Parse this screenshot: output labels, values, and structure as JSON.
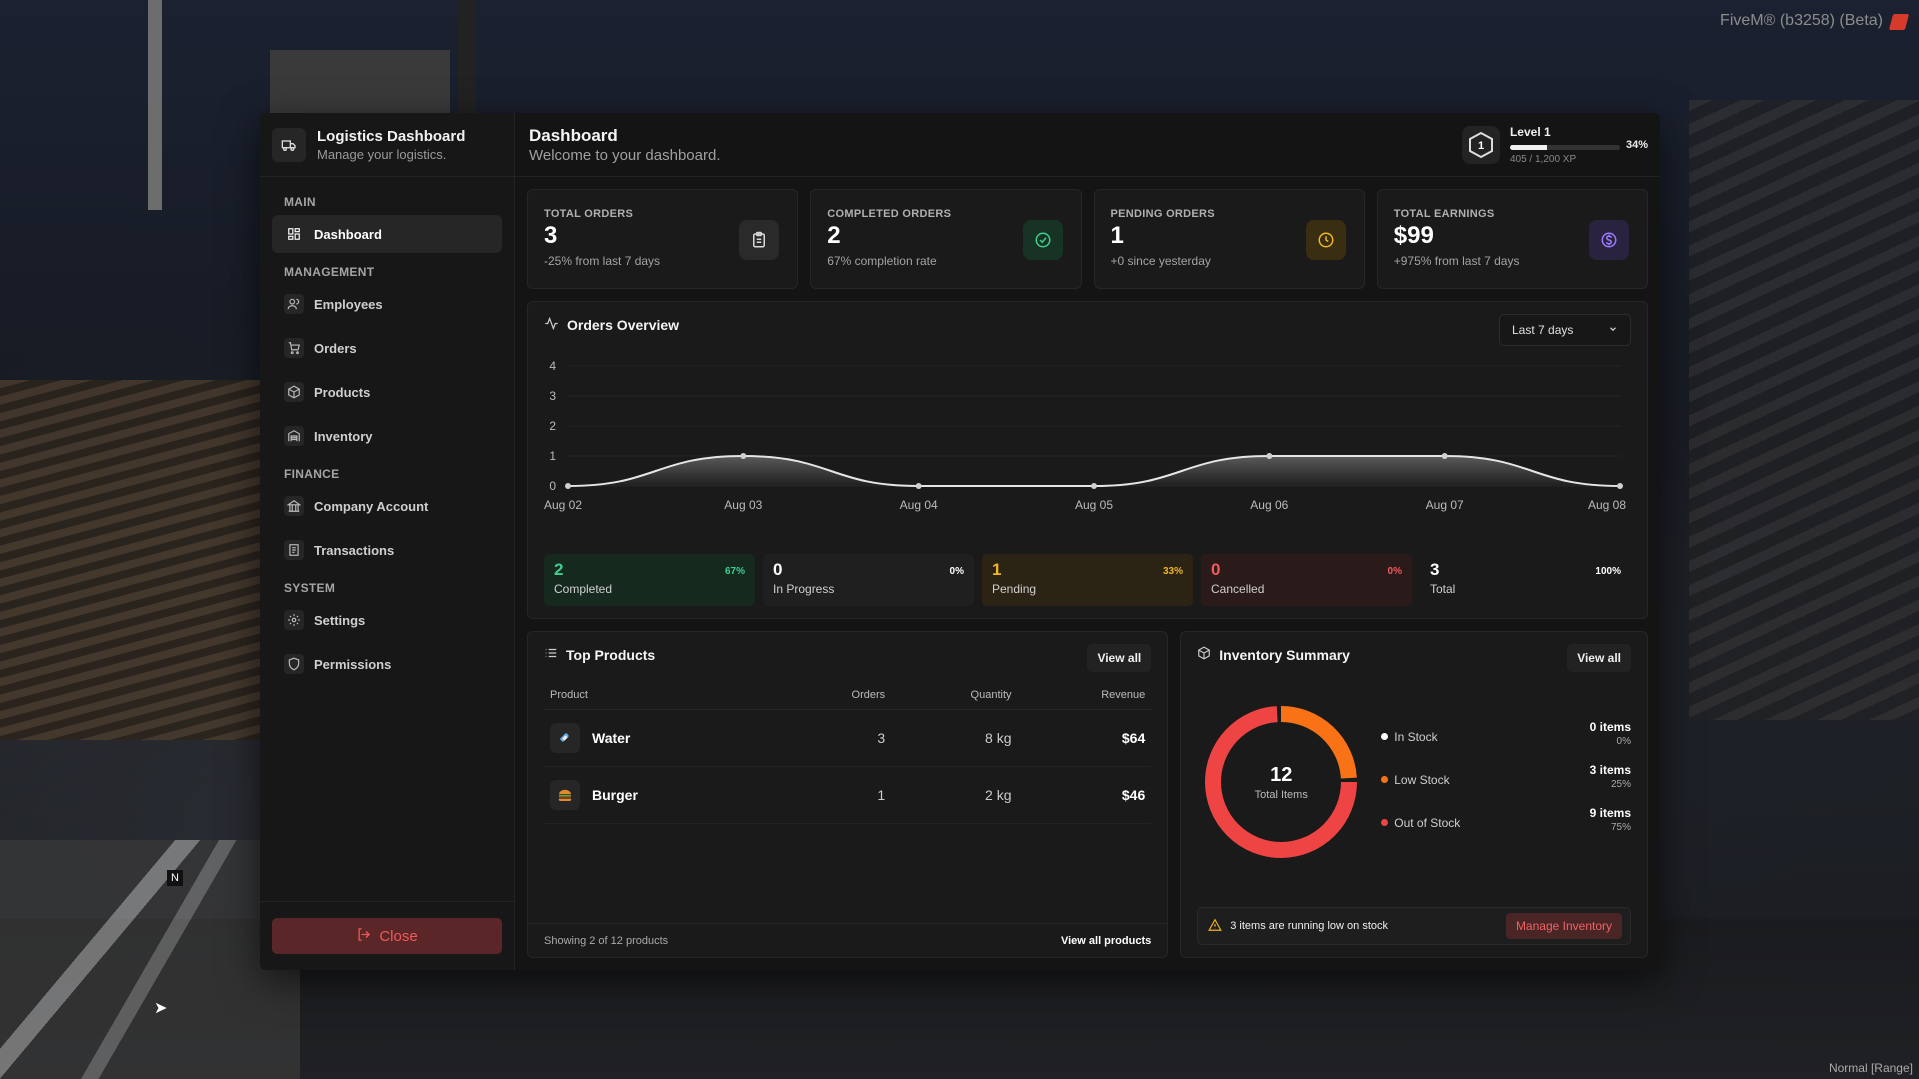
{
  "overlay": {
    "fivem_label": "FiveM® (b3258) (Beta)",
    "mode_label": "Normal [Range]",
    "minimap_north": "N"
  },
  "sidebar": {
    "title": "Logistics Dashboard",
    "subtitle": "Manage your logistics.",
    "sections": [
      {
        "label": "MAIN",
        "items": [
          {
            "label": "Dashboard",
            "icon": "dashboard-icon",
            "active": true
          }
        ]
      },
      {
        "label": "MANAGEMENT",
        "items": [
          {
            "label": "Employees",
            "icon": "users-icon"
          },
          {
            "label": "Orders",
            "icon": "cart-icon"
          },
          {
            "label": "Products",
            "icon": "box-icon"
          },
          {
            "label": "Inventory",
            "icon": "warehouse-icon"
          }
        ]
      },
      {
        "label": "FINANCE",
        "items": [
          {
            "label": "Company Account",
            "icon": "bank-icon"
          },
          {
            "label": "Transactions",
            "icon": "receipt-icon"
          }
        ]
      },
      {
        "label": "SYSTEM",
        "items": [
          {
            "label": "Settings",
            "icon": "gear-icon"
          },
          {
            "label": "Permissions",
            "icon": "shield-icon"
          }
        ]
      }
    ],
    "close_label": "Close"
  },
  "header": {
    "title": "Dashboard",
    "subtitle": "Welcome to your dashboard.",
    "level_number": "1",
    "level_label": "Level 1",
    "xp_text": "405 / 1,200 XP",
    "xp_percent_label": "34%",
    "xp_fraction": 0.34
  },
  "stats": [
    {
      "label": "TOTAL ORDERS",
      "value": "3",
      "note": "-25% from last 7 days",
      "icon": "clipboard-icon",
      "color": "#d9d9d9",
      "bg": "#2a2a2a"
    },
    {
      "label": "COMPLETED ORDERS",
      "value": "2",
      "note": "67% completion rate",
      "icon": "check-circle-icon",
      "color": "#3ecf8e",
      "bg": "#173326"
    },
    {
      "label": "PENDING ORDERS",
      "value": "1",
      "note": "+0 since yesterday",
      "icon": "clock-icon",
      "color": "#f0b429",
      "bg": "#3a2e12"
    },
    {
      "label": "TOTAL EARNINGS",
      "value": "$99",
      "note": "+975% from last 7 days",
      "icon": "dollar-icon",
      "color": "#9b7bff",
      "bg": "#2a2340"
    }
  ],
  "overview": {
    "title": "Orders Overview",
    "range": "Last 7 days",
    "status": [
      {
        "value": "2",
        "label": "Completed",
        "pct": "67%",
        "color": "#3ecf8e",
        "bg": "#15291f"
      },
      {
        "value": "0",
        "label": "In Progress",
        "pct": "0%",
        "color": "#ffffff",
        "bg": "#1f1f1f"
      },
      {
        "value": "1",
        "label": "Pending",
        "pct": "33%",
        "color": "#f0b429",
        "bg": "#2b2414"
      },
      {
        "value": "0",
        "label": "Cancelled",
        "pct": "0%",
        "color": "#f05a5a",
        "bg": "#2a1a1a"
      },
      {
        "value": "3",
        "label": "Total",
        "pct": "100%",
        "color": "#ffffff",
        "bg": "#1a1a1a"
      }
    ]
  },
  "chart_data": {
    "type": "area",
    "x": [
      "Aug 02",
      "Aug 03",
      "Aug 04",
      "Aug 05",
      "Aug 06",
      "Aug 07",
      "Aug 08"
    ],
    "series": [
      {
        "values": [
          0,
          1,
          0,
          0,
          1,
          1,
          0
        ]
      }
    ],
    "y_ticks": [
      "0",
      "1",
      "2",
      "3",
      "4"
    ],
    "ylim": [
      0,
      4
    ],
    "grid": true
  },
  "products": {
    "title": "Top Products",
    "view_all": "View all",
    "columns": [
      "Product",
      "Orders",
      "Quantity",
      "Revenue"
    ],
    "rows": [
      {
        "name": "Water",
        "orders": "3",
        "quantity": "8 kg",
        "revenue": "$64",
        "icon": "water-bottle-icon"
      },
      {
        "name": "Burger",
        "orders": "1",
        "quantity": "2 kg",
        "revenue": "$46",
        "icon": "burger-icon"
      }
    ],
    "footer_text": "Showing 2 of 12 products",
    "footer_link": "View all products"
  },
  "inventory": {
    "title": "Inventory Summary",
    "view_all": "View all",
    "total": "12",
    "total_label": "Total Items",
    "segments": [
      {
        "label": "In Stock",
        "count": "0 items",
        "pct": "0%",
        "fraction": 0,
        "color": "#ffffff"
      },
      {
        "label": "Low Stock",
        "count": "3 items",
        "pct": "25%",
        "fraction": 0.25,
        "color": "#f97316"
      },
      {
        "label": "Out of Stock",
        "count": "9 items",
        "pct": "75%",
        "fraction": 0.75,
        "color": "#ef4444"
      }
    ],
    "alert_text": "3 items are running low on stock",
    "alert_button": "Manage Inventory"
  }
}
